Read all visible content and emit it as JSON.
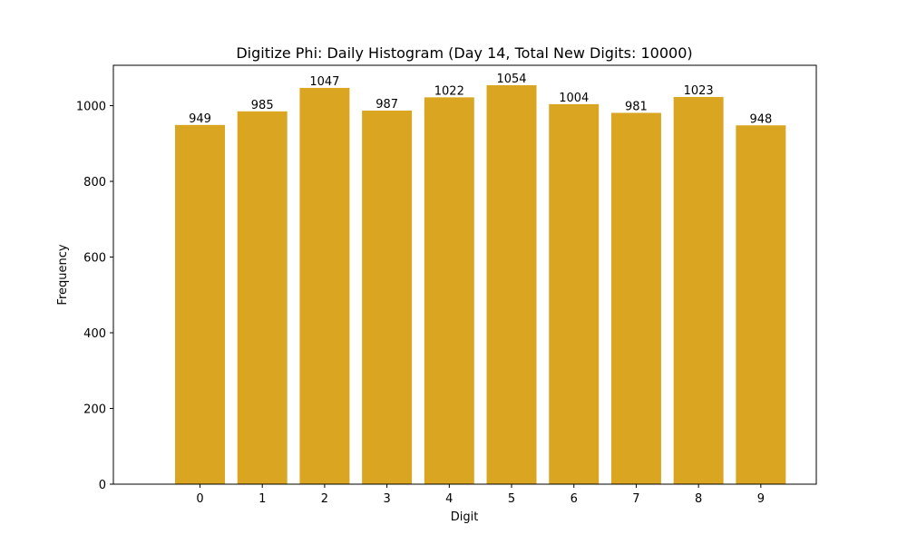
{
  "chart_data": {
    "type": "bar",
    "title": "Digitize Phi: Daily Histogram (Day 14, Total New Digits: 10000)",
    "xlabel": "Digit",
    "ylabel": "Frequency",
    "categories": [
      "0",
      "1",
      "2",
      "3",
      "4",
      "5",
      "6",
      "7",
      "8",
      "9"
    ],
    "values": [
      949,
      985,
      1047,
      987,
      1022,
      1054,
      1004,
      981,
      1023,
      948
    ],
    "bar_labels": [
      "949",
      "985",
      "1047",
      "987",
      "1022",
      "1054",
      "1004",
      "981",
      "1023",
      "948"
    ],
    "ylim": [
      0,
      1106.7
    ],
    "yticks": [
      0,
      200,
      400,
      600,
      800,
      1000
    ],
    "ytick_labels": [
      "0",
      "200",
      "400",
      "600",
      "800",
      "1000"
    ],
    "bar_color": "#DAA520",
    "grid": false,
    "legend": null
  }
}
